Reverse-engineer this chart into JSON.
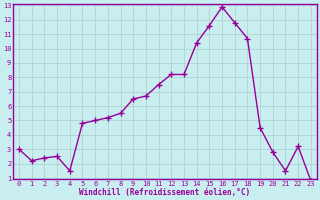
{
  "x": [
    0,
    1,
    2,
    3,
    4,
    5,
    6,
    7,
    8,
    9,
    10,
    11,
    12,
    13,
    14,
    15,
    16,
    17,
    18,
    19,
    20,
    21,
    22,
    23
  ],
  "y": [
    3.0,
    2.2,
    2.4,
    2.5,
    1.5,
    4.8,
    5.0,
    5.2,
    5.5,
    6.5,
    6.7,
    7.5,
    8.2,
    8.2,
    10.4,
    11.6,
    12.9,
    11.8,
    10.7,
    4.5,
    2.8,
    1.5,
    3.2,
    0.8
  ],
  "line_color": "#990099",
  "marker": "+",
  "marker_size": 4,
  "marker_lw": 1.0,
  "line_width": 1.0,
  "bg_color": "#c8eef0",
  "grid_color": "#aacccc",
  "xlabel": "Windchill (Refroidissement éolien,°C)",
  "xlabel_color": "#990099",
  "tick_color": "#990099",
  "ylim": [
    1,
    13
  ],
  "xlim": [
    -0.5,
    23.5
  ],
  "yticks": [
    1,
    2,
    3,
    4,
    5,
    6,
    7,
    8,
    9,
    10,
    11,
    12,
    13
  ],
  "xticks": [
    0,
    1,
    2,
    3,
    4,
    5,
    6,
    7,
    8,
    9,
    10,
    11,
    12,
    13,
    14,
    15,
    16,
    17,
    18,
    19,
    20,
    21,
    22,
    23
  ],
  "spine_color": "#990099",
  "label_fontsize": 5.5,
  "tick_fontsize": 5.0,
  "xlabel_fontsize": 5.5
}
